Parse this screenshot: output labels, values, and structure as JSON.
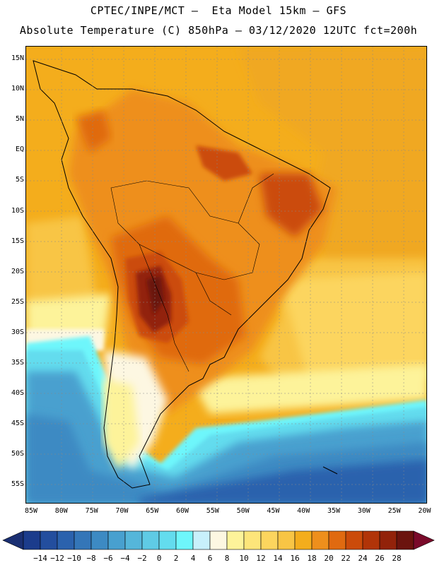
{
  "header": {
    "line1": "CPTEC/INPE/MCT –  Eta Model 15km – GFS",
    "line2": "Absolute Temperature (C) 850hPa – 03/12/2020 12UTC fct=200h"
  },
  "axes": {
    "lat_labels": [
      "15N",
      "10N",
      "5N",
      "EQ",
      "5S",
      "10S",
      "15S",
      "20S",
      "25S",
      "30S",
      "35S",
      "40S",
      "45S",
      "50S",
      "55S"
    ],
    "lon_labels": [
      "85W",
      "80W",
      "75W",
      "70W",
      "65W",
      "60W",
      "55W",
      "50W",
      "45W",
      "40W",
      "35W",
      "30W",
      "25W",
      "20W"
    ]
  },
  "colorbar": {
    "labels": [
      "-14",
      "-12",
      "-10",
      "-8",
      "-6",
      "-4",
      "-2",
      "0",
      "2",
      "4",
      "6",
      "8",
      "10",
      "12",
      "14",
      "16",
      "18",
      "20",
      "22",
      "24",
      "26",
      "28"
    ],
    "colors": [
      "#1b3c8c",
      "#234e9e",
      "#2b62ad",
      "#3476b8",
      "#3d8ac3",
      "#48a0cf",
      "#55b6da",
      "#5fcbe5",
      "#63dcee",
      "#6ef6fb",
      "#c8f0fb",
      "#fdf7e2",
      "#fdf39a",
      "#fde57a",
      "#fcd55e",
      "#f8c545",
      "#f4ad1c",
      "#ee8f1c",
      "#e06a10",
      "#cb4b0a",
      "#b13408",
      "#92220a",
      "#6b130e"
    ],
    "end_left": "#1a2f72",
    "end_right": "#7a0a2a"
  }
}
